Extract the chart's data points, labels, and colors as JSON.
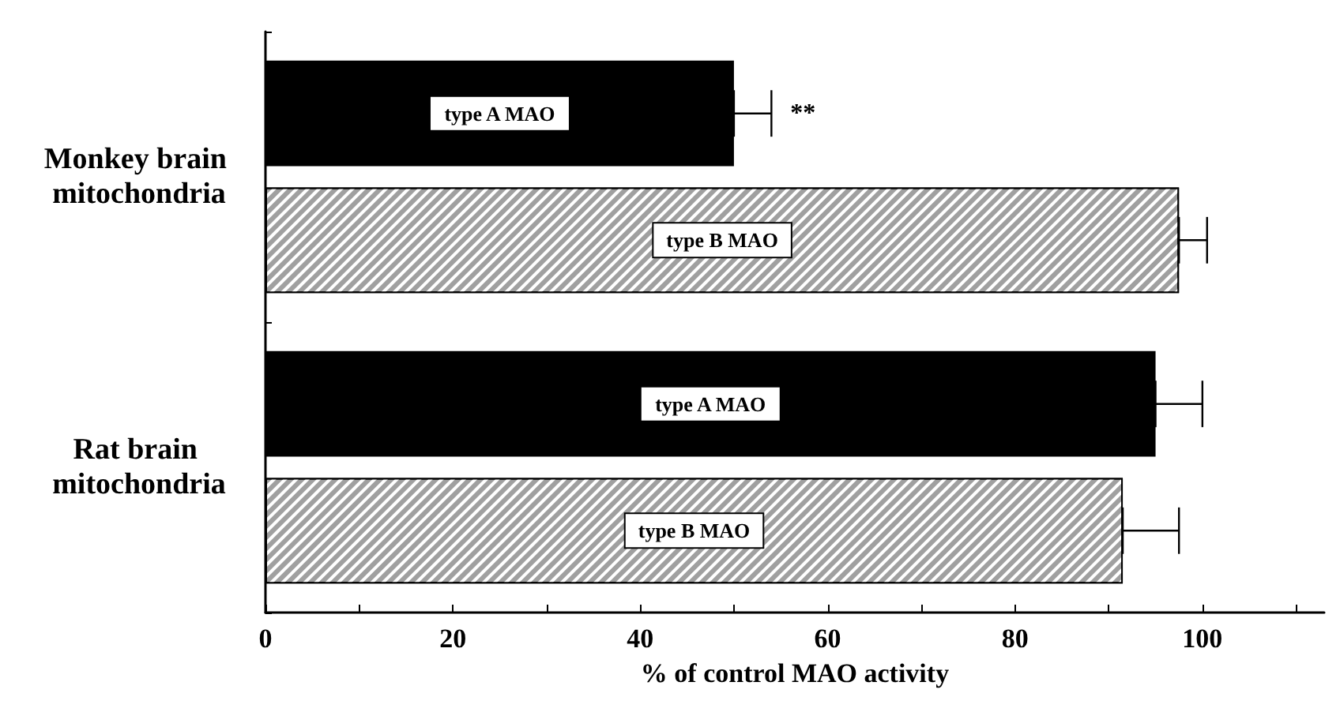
{
  "chart_data": {
    "type": "bar",
    "orientation": "horizontal",
    "xlabel": "% of control MAO activity",
    "categories": [
      "Monkey brain mitochondria",
      "Rat brain mitochondria"
    ],
    "series": [
      {
        "name": "type A MAO",
        "color": "#000000",
        "values": [
          50,
          95
        ],
        "errors": [
          [
            50,
            54
          ],
          [
            95,
            100
          ]
        ]
      },
      {
        "name": "type B MAO",
        "color": "#a0a0a0",
        "values": [
          97.5,
          91.5
        ],
        "errors": [
          [
            97.5,
            100.5
          ],
          [
            91.5,
            97.5
          ]
        ]
      }
    ],
    "xlim": [
      0,
      113
    ],
    "xticks": [
      0,
      {
        "value": 10,
        "label": null
      },
      20,
      {
        "value": 30,
        "label": null
      },
      40,
      {
        "value": 50,
        "label": null
      },
      60,
      {
        "value": 70,
        "label": null
      },
      80,
      {
        "value": 90,
        "label": null
      },
      100,
      {
        "value": 110,
        "label": null
      }
    ],
    "annotations": [
      "**"
    ],
    "grid": false
  }
}
